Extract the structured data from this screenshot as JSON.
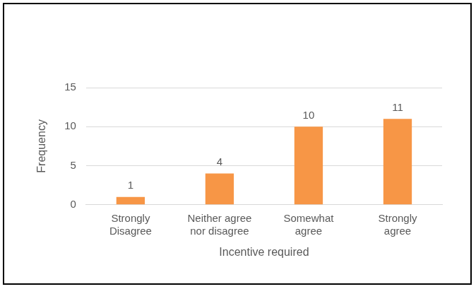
{
  "chart_data": {
    "type": "bar",
    "x_label": "Incentive required",
    "y_label": "Frequency",
    "categories": [
      "Strongly Disagree",
      "Neither agree nor disagree",
      "Somewhat agree",
      "Strongly agree"
    ],
    "values": [
      1,
      4,
      10,
      11
    ],
    "color": "#f79646",
    "ylim": [
      0,
      15
    ],
    "yticks": [
      0,
      5,
      10,
      15
    ],
    "grid": true,
    "data_labels": true
  }
}
